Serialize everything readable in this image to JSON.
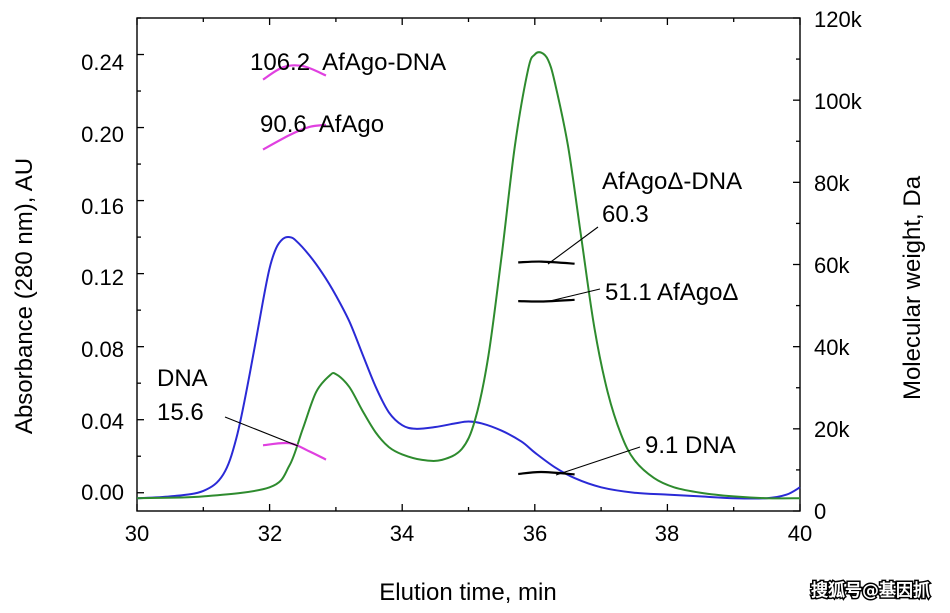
{
  "chart_data": {
    "type": "line",
    "xlabel": "Elution time, min",
    "ylabel_left": "Absorbance (280 nm), AU",
    "ylabel_right": "Molecular weight, Da",
    "xlim": [
      30,
      40
    ],
    "ylim_left": [
      -0.01,
      0.26
    ],
    "ylim_right": [
      0,
      120000
    ],
    "x_ticks": [
      "30",
      "32",
      "34",
      "36",
      "38",
      "40"
    ],
    "y_left_ticks": [
      "0.00",
      "0.04",
      "0.08",
      "0.12",
      "0.16",
      "0.20",
      "0.24"
    ],
    "y_right_ticks": [
      "0",
      "20k",
      "40k",
      "60k",
      "80k",
      "100k",
      "120k"
    ],
    "series": [
      {
        "name": "AfAgo (blue trace)",
        "color": "#2a2ad6",
        "axis": "left",
        "x": [
          30.0,
          30.5,
          31.0,
          31.3,
          31.5,
          31.7,
          31.9,
          32.0,
          32.1,
          32.2,
          32.3,
          32.4,
          32.6,
          32.8,
          33.0,
          33.2,
          33.4,
          33.6,
          33.8,
          34.0,
          34.2,
          34.5,
          34.8,
          35.0,
          35.2,
          35.5,
          35.8,
          36.0,
          36.3,
          36.6,
          37.0,
          37.5,
          38.0,
          38.5,
          39.0,
          39.5,
          39.8,
          40.0
        ],
        "y": [
          -0.003,
          -0.002,
          0.001,
          0.01,
          0.03,
          0.065,
          0.105,
          0.123,
          0.134,
          0.139,
          0.14,
          0.138,
          0.13,
          0.12,
          0.108,
          0.094,
          0.076,
          0.058,
          0.044,
          0.037,
          0.035,
          0.036,
          0.038,
          0.039,
          0.038,
          0.034,
          0.028,
          0.022,
          0.014,
          0.008,
          0.003,
          0.0,
          -0.001,
          -0.002,
          -0.003,
          -0.003,
          -0.001,
          0.003
        ]
      },
      {
        "name": "AfAgoΔ (green trace)",
        "color": "#2e8b2e",
        "axis": "left",
        "x": [
          30.0,
          31.0,
          32.0,
          32.3,
          32.5,
          32.7,
          32.9,
          33.0,
          33.2,
          33.4,
          33.6,
          33.8,
          34.0,
          34.3,
          34.6,
          34.9,
          35.1,
          35.3,
          35.5,
          35.7,
          35.9,
          36.0,
          36.1,
          36.2,
          36.3,
          36.5,
          36.7,
          36.9,
          37.1,
          37.3,
          37.5,
          37.8,
          38.1,
          38.5,
          39.0,
          39.5,
          40.0
        ],
        "y": [
          -0.003,
          -0.002,
          0.003,
          0.015,
          0.035,
          0.055,
          0.064,
          0.065,
          0.058,
          0.045,
          0.033,
          0.025,
          0.021,
          0.018,
          0.018,
          0.024,
          0.04,
          0.075,
          0.13,
          0.19,
          0.232,
          0.24,
          0.241,
          0.237,
          0.225,
          0.19,
          0.14,
          0.09,
          0.055,
          0.032,
          0.018,
          0.008,
          0.003,
          0.0,
          -0.002,
          -0.003,
          -0.003
        ]
      }
    ],
    "mw_segments": [
      {
        "name": "AfAgo-DNA",
        "color": "#e040e0",
        "axis": "right",
        "x": [
          31.9,
          32.2,
          32.5,
          32.85
        ],
        "y": [
          105000,
          108000,
          108300,
          106000
        ]
      },
      {
        "name": "AfAgo",
        "color": "#e040e0",
        "axis": "right",
        "x": [
          31.9,
          32.3,
          32.6,
          32.85
        ],
        "y": [
          88000,
          91500,
          93500,
          94000
        ]
      },
      {
        "name": "DNA (magenta)",
        "color": "#e040e0",
        "axis": "right",
        "x": [
          31.9,
          32.3,
          32.6,
          32.85
        ],
        "y": [
          16000,
          16500,
          14500,
          12500
        ]
      },
      {
        "name": "AfAgoΔ-DNA",
        "color": "#000000",
        "axis": "right",
        "x": [
          35.75,
          36.1,
          36.6
        ],
        "y": [
          60500,
          60700,
          60200
        ]
      },
      {
        "name": "AfAgoΔ",
        "color": "#000000",
        "axis": "right",
        "x": [
          35.75,
          36.1,
          36.6
        ],
        "y": [
          51100,
          51000,
          51400
        ]
      },
      {
        "name": "DNA (black)",
        "color": "#000000",
        "axis": "right",
        "x": [
          35.75,
          36.1,
          36.6
        ],
        "y": [
          9000,
          9500,
          8900
        ]
      }
    ],
    "annotations": [
      {
        "label": "106.2  AfAgo-DNA"
      },
      {
        "label": "90.6  AfAgo"
      },
      {
        "label": "AfAgoΔ-DNA"
      },
      {
        "label": "60.3"
      },
      {
        "label": "51.1 AfAgoΔ"
      },
      {
        "label": "DNA"
      },
      {
        "label": "15.6"
      },
      {
        "label": "9.1 DNA"
      }
    ]
  },
  "watermark": "搜狐号@基因抓"
}
